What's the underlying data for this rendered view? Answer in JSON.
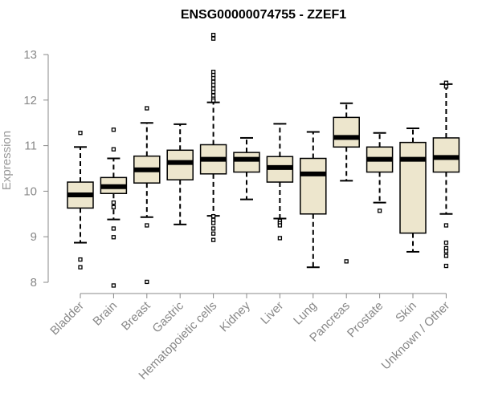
{
  "chart_data": {
    "type": "boxplot",
    "title": "ENSG00000074755 - ZZEF1",
    "xlabel": "",
    "ylabel": "Expression",
    "ylim": [
      7.8,
      13.5
    ],
    "yticks": [
      8,
      9,
      10,
      11,
      12,
      13
    ],
    "colors": {
      "box_fill": "#ede6cd",
      "stroke": "#000000",
      "axis": "#888888"
    },
    "categories": [
      "Bladder",
      "Brain",
      "Breast",
      "Gastric",
      "Hematopoietic cells",
      "Kidney",
      "Liver",
      "Lung",
      "Pancreas",
      "Prostate",
      "Skin",
      "Unknown / Other"
    ],
    "boxes": [
      {
        "category": "Bladder",
        "whisker_low": 8.87,
        "q1": 9.63,
        "median": 9.92,
        "q3": 10.2,
        "whisker_high": 10.97,
        "outliers": [
          11.28,
          8.5,
          8.33
        ]
      },
      {
        "category": "Brain",
        "whisker_low": 9.38,
        "q1": 9.95,
        "median": 10.1,
        "q3": 10.3,
        "whisker_high": 10.72,
        "outliers": [
          11.35,
          10.92,
          9.75,
          9.65,
          9.18,
          8.99,
          7.93
        ]
      },
      {
        "category": "Breast",
        "whisker_low": 9.43,
        "q1": 10.18,
        "median": 10.47,
        "q3": 10.77,
        "whisker_high": 11.5,
        "outliers": [
          11.82,
          9.25,
          8.01
        ]
      },
      {
        "category": "Gastric",
        "whisker_low": 9.27,
        "q1": 10.25,
        "median": 10.63,
        "q3": 10.9,
        "whisker_high": 11.47,
        "outliers": []
      },
      {
        "category": "Hematopoietic cells",
        "whisker_low": 9.46,
        "q1": 10.38,
        "median": 10.7,
        "q3": 11.02,
        "whisker_high": 11.95,
        "outliers": [
          13.43,
          13.35,
          12.62,
          12.55,
          12.48,
          12.4,
          12.33,
          12.25,
          12.18,
          12.1,
          12.03,
          11.98,
          11.99,
          9.45,
          9.37,
          9.3,
          9.18,
          9.07,
          8.93
        ]
      },
      {
        "category": "Kidney",
        "whisker_low": 9.82,
        "q1": 10.42,
        "median": 10.7,
        "q3": 10.85,
        "whisker_high": 11.17,
        "outliers": []
      },
      {
        "category": "Liver",
        "whisker_low": 9.4,
        "q1": 10.2,
        "median": 10.52,
        "q3": 10.76,
        "whisker_high": 11.48,
        "outliers": [
          9.35,
          9.3,
          9.25,
          8.97
        ]
      },
      {
        "category": "Lung",
        "whisker_low": 8.33,
        "q1": 9.5,
        "median": 10.38,
        "q3": 10.72,
        "whisker_high": 11.3,
        "outliers": []
      },
      {
        "category": "Pancreas",
        "whisker_low": 10.23,
        "q1": 10.97,
        "median": 11.18,
        "q3": 11.62,
        "whisker_high": 11.93,
        "outliers": [
          8.46
        ]
      },
      {
        "category": "Prostate",
        "whisker_low": 9.75,
        "q1": 10.42,
        "median": 10.7,
        "q3": 10.97,
        "whisker_high": 11.28,
        "outliers": [
          9.57
        ]
      },
      {
        "category": "Skin",
        "whisker_low": 8.67,
        "q1": 9.08,
        "median": 10.7,
        "q3": 11.07,
        "whisker_high": 11.38,
        "outliers": []
      },
      {
        "category": "Unknown / Other",
        "whisker_low": 9.5,
        "q1": 10.42,
        "median": 10.74,
        "q3": 11.17,
        "whisker_high": 12.35,
        "outliers": [
          12.38,
          12.3,
          9.25,
          8.87,
          8.75,
          8.68,
          8.58,
          8.36
        ]
      }
    ]
  }
}
